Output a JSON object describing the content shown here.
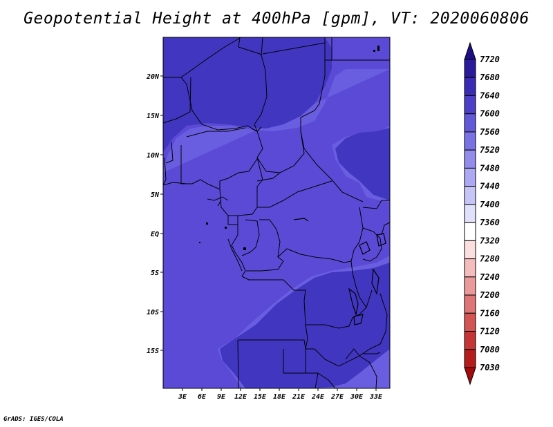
{
  "title": "Geopotential Height at 400hPa [gpm], VT: 2020060806",
  "credit": "GrADS: IGES/COLA",
  "map": {
    "x_ticks": [
      "3E",
      "6E",
      "9E",
      "12E",
      "15E",
      "18E",
      "21E",
      "24E",
      "27E",
      "30E",
      "33E"
    ],
    "y_ticks": [
      "20N",
      "15N",
      "10N",
      "5N",
      "EQ",
      "5S",
      "10S",
      "15S"
    ],
    "fill_colors": {
      "7560": "#6a5ee0",
      "7600": "#5a4ad6",
      "7640": "#4136c0"
    }
  },
  "colorbar": {
    "levels": [
      "7720",
      "7680",
      "7640",
      "7600",
      "7560",
      "7520",
      "7480",
      "7440",
      "7400",
      "7360",
      "7320",
      "7280",
      "7240",
      "7200",
      "7160",
      "7120",
      "7080",
      "7030"
    ],
    "colors": [
      "#1e0f86",
      "#2b1a9c",
      "#3a2bb4",
      "#4d3fc8",
      "#6259d8",
      "#7a72e4",
      "#938ced",
      "#aca8f3",
      "#c7c4f8",
      "#e2e1fb",
      "#ffffff",
      "#fbdede",
      "#f4bcbc",
      "#eb9999",
      "#e07575",
      "#d45353",
      "#c63535",
      "#b51c1c",
      "#a30a0a"
    ]
  }
}
